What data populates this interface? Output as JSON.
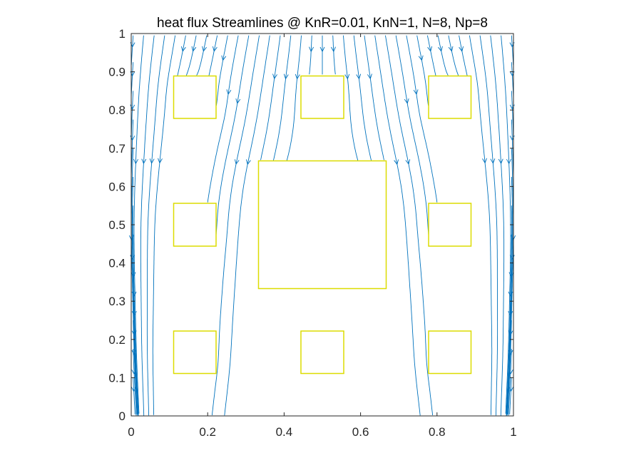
{
  "chart_data": {
    "type": "streamline",
    "title": "heat flux Streamlines @ KnR=0.01, KnN=1, N=8, Np=8",
    "xlabel": "",
    "ylabel": "",
    "xlim": [
      0,
      1
    ],
    "ylim": [
      0,
      1
    ],
    "xticks": [
      0,
      0.2,
      0.4,
      0.6,
      0.8,
      1
    ],
    "yticks": [
      0,
      0.1,
      0.2,
      0.3,
      0.4,
      0.5,
      0.6,
      0.7,
      0.8,
      0.9,
      1
    ],
    "x_tick_labels": [
      "0",
      "0.2",
      "0.4",
      "0.6",
      "0.8",
      "1"
    ],
    "y_tick_labels": [
      "0",
      "0.1",
      "0.2",
      "0.3",
      "0.4",
      "0.5",
      "0.6",
      "0.7",
      "0.8",
      "0.9",
      "1"
    ],
    "grid": false,
    "streamline_color": "#0072BD",
    "obstacle_edge_color": "#DCDC00",
    "obstacles": [
      {
        "name": "center",
        "x0": 0.333,
        "x1": 0.667,
        "y0": 0.333,
        "y1": 0.667
      },
      {
        "name": "top-left",
        "x0": 0.111,
        "x1": 0.222,
        "y0": 0.778,
        "y1": 0.889
      },
      {
        "name": "top-middle",
        "x0": 0.444,
        "x1": 0.556,
        "y0": 0.778,
        "y1": 0.889
      },
      {
        "name": "top-right",
        "x0": 0.778,
        "x1": 0.889,
        "y0": 0.778,
        "y1": 0.889
      },
      {
        "name": "middle-left",
        "x0": 0.111,
        "x1": 0.222,
        "y0": 0.444,
        "y1": 0.556
      },
      {
        "name": "middle-right",
        "x0": 0.778,
        "x1": 0.889,
        "y0": 0.444,
        "y1": 0.556
      },
      {
        "name": "bottom-left",
        "x0": 0.111,
        "x1": 0.222,
        "y0": 0.111,
        "y1": 0.222
      },
      {
        "name": "bottom-middle",
        "x0": 0.444,
        "x1": 0.556,
        "y0": 0.111,
        "y1": 0.222
      },
      {
        "name": "bottom-right",
        "x0": 0.778,
        "x1": 0.889,
        "y0": 0.111,
        "y1": 0.222
      }
    ]
  }
}
